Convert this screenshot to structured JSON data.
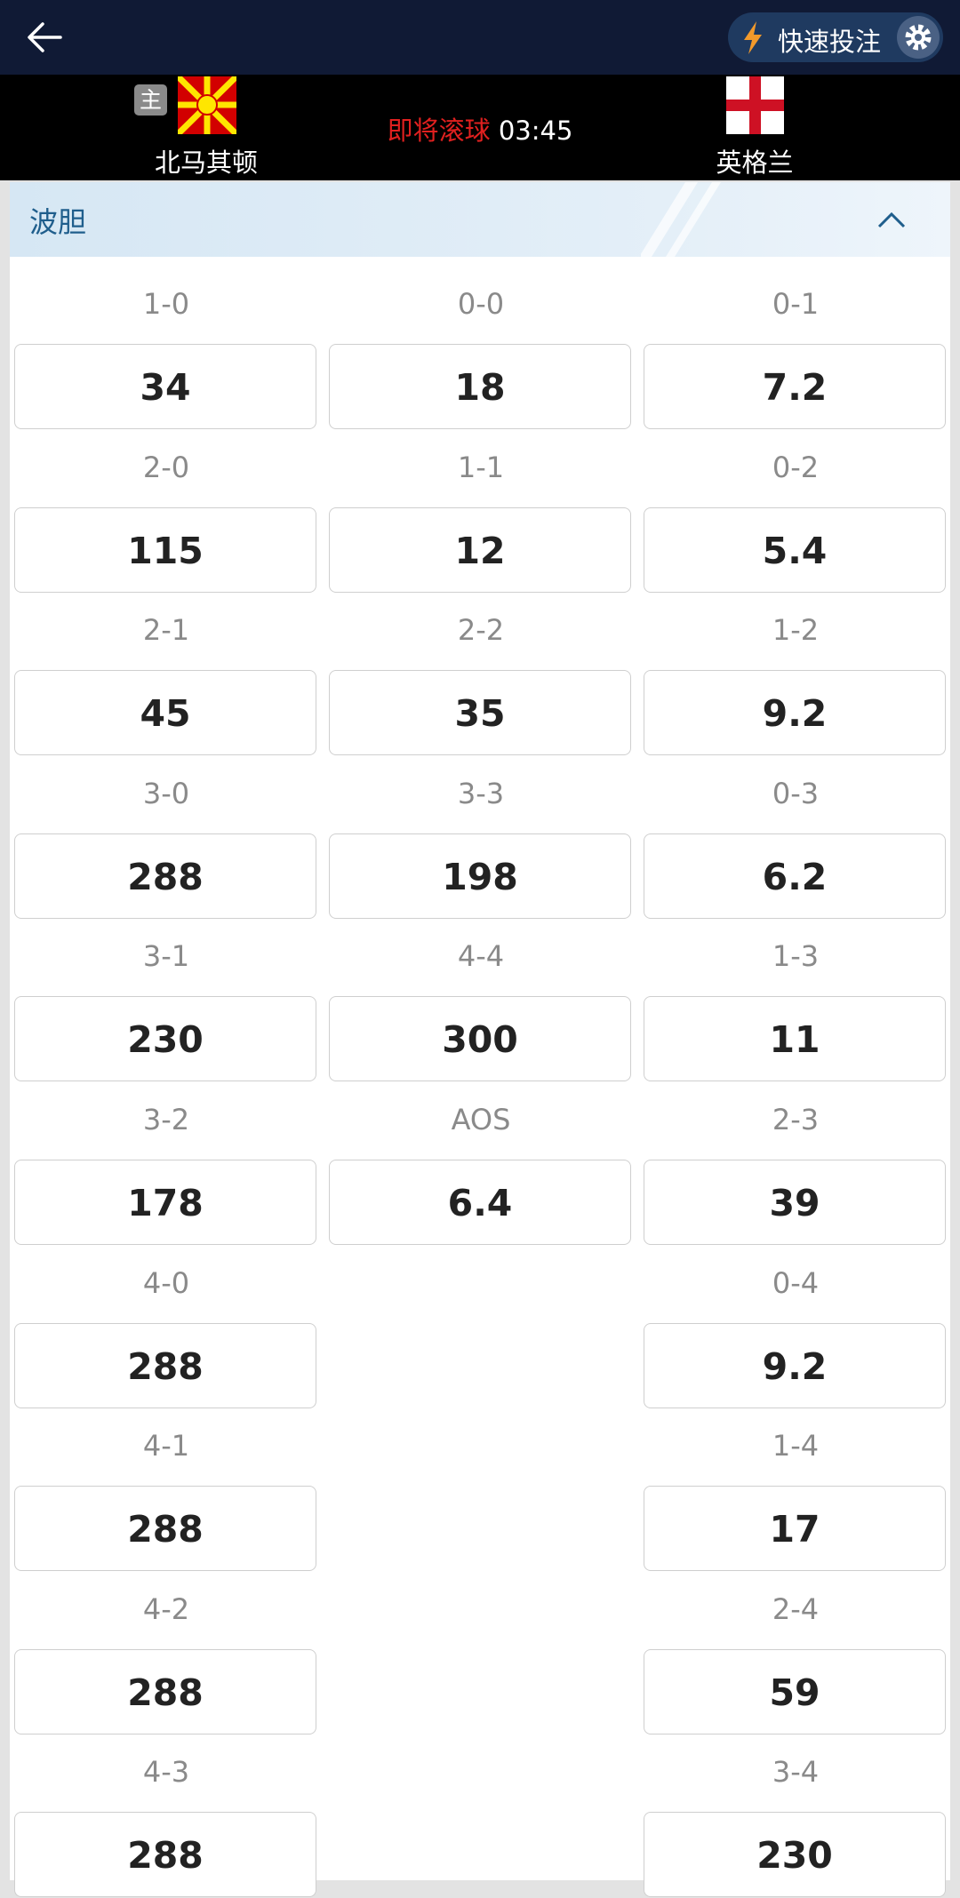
{
  "header": {
    "quick_bet": "快速投注"
  },
  "match": {
    "home": {
      "badge": "主",
      "name": "北马其顿"
    },
    "status": "即将滚球",
    "time": "03:45",
    "away": {
      "name": "英格兰"
    }
  },
  "section": {
    "title": "波胆"
  },
  "columns": [
    [
      {
        "score": "1-0",
        "odds": 34
      },
      {
        "score": "2-0",
        "odds": 115
      },
      {
        "score": "2-1",
        "odds": 45
      },
      {
        "score": "3-0",
        "odds": 288
      },
      {
        "score": "3-1",
        "odds": 230
      },
      {
        "score": "3-2",
        "odds": 178
      },
      {
        "score": "4-0",
        "odds": 288
      },
      {
        "score": "4-1",
        "odds": 288
      },
      {
        "score": "4-2",
        "odds": 288
      },
      {
        "score": "4-3",
        "odds": 288
      }
    ],
    [
      {
        "score": "0-0",
        "odds": 18
      },
      {
        "score": "1-1",
        "odds": 12
      },
      {
        "score": "2-2",
        "odds": 35
      },
      {
        "score": "3-3",
        "odds": 198
      },
      {
        "score": "4-4",
        "odds": 300
      },
      {
        "score": "AOS",
        "odds": 6.4
      }
    ],
    [
      {
        "score": "0-1",
        "odds": 7.2
      },
      {
        "score": "0-2",
        "odds": 5.4
      },
      {
        "score": "1-2",
        "odds": 9.2
      },
      {
        "score": "0-3",
        "odds": 6.2
      },
      {
        "score": "1-3",
        "odds": 11
      },
      {
        "score": "2-3",
        "odds": 39
      },
      {
        "score": "0-4",
        "odds": 9.2
      },
      {
        "score": "1-4",
        "odds": 17
      },
      {
        "score": "2-4",
        "odds": 59
      },
      {
        "score": "3-4",
        "odds": 230
      }
    ]
  ]
}
